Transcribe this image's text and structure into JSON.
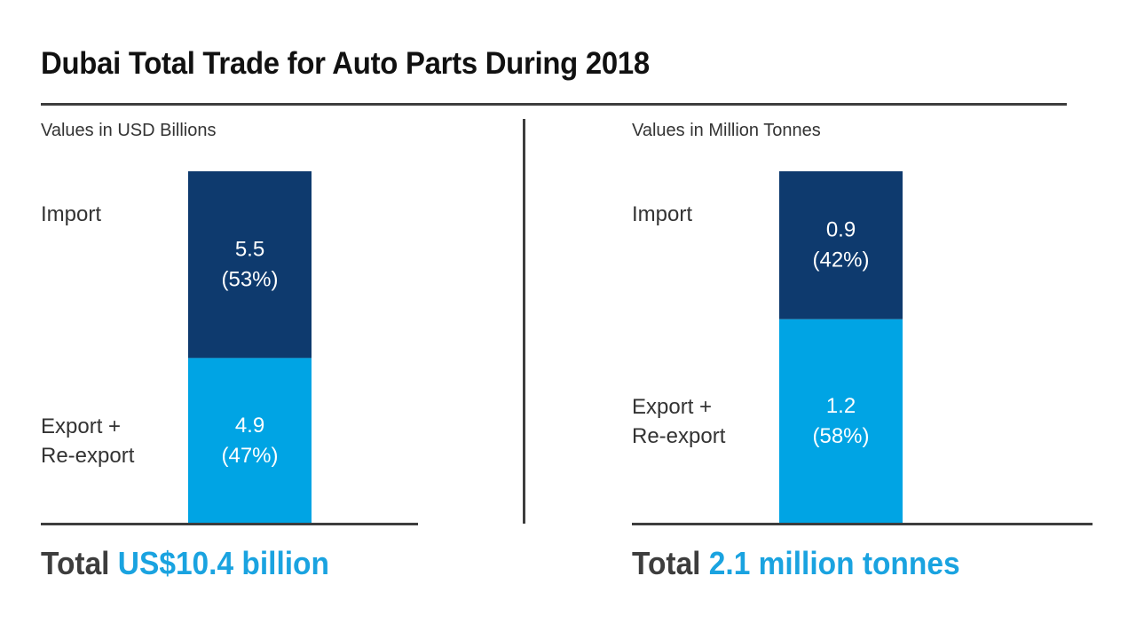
{
  "title": "Dubai Total Trade for Auto Parts During 2018",
  "colors": {
    "import": "#0e3a6e",
    "export": "#00a4e4",
    "accent": "#1aa3e0",
    "rule": "#3d3d3d"
  },
  "chart_data": [
    {
      "type": "bar",
      "stacked": true,
      "subtitle": "Values in USD Billions",
      "categories": [
        "Import",
        "Export + Re-export"
      ],
      "series": [
        {
          "name": "Import",
          "value": 5.5,
          "pct": 53,
          "label_value": "5.5",
          "label_pct": "(53%)"
        },
        {
          "name": "Export + Re-export",
          "value": 4.9,
          "pct": 47,
          "label_value": "4.9",
          "label_pct": "(47%)"
        }
      ],
      "total_word": "Total",
      "total_value": "US$10.4 billion"
    },
    {
      "type": "bar",
      "stacked": true,
      "subtitle": "Values in Million Tonnes",
      "categories": [
        "Import",
        "Export + Re-export"
      ],
      "series": [
        {
          "name": "Import",
          "value": 0.9,
          "pct": 42,
          "label_value": "0.9",
          "label_pct": "(42%)"
        },
        {
          "name": "Export + Re-export",
          "value": 1.2,
          "pct": 58,
          "label_value": "1.2",
          "label_pct": "(58%)"
        }
      ],
      "total_word": "Total",
      "total_value": "2.1 million tonnes"
    }
  ]
}
